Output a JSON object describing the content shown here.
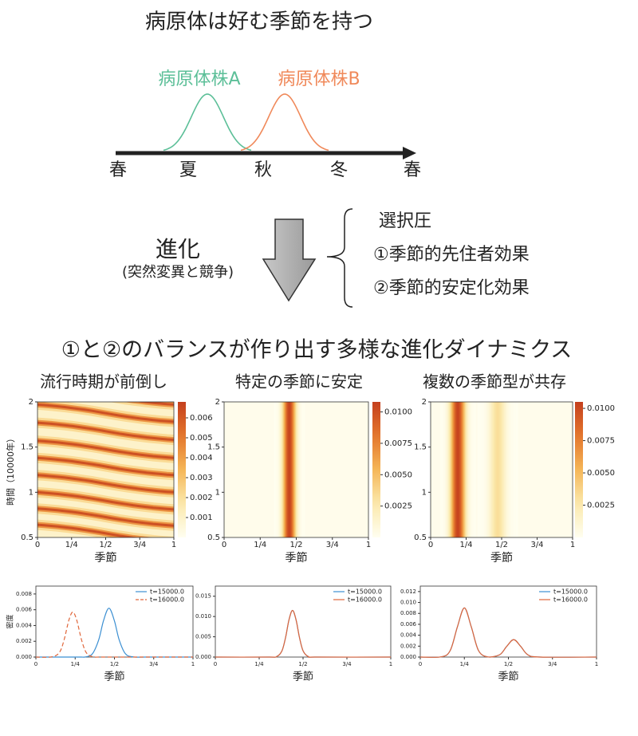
{
  "diagram": {
    "title": "病原体は好む季節を持つ",
    "strains": [
      {
        "name": "病原体株A",
        "color": "#5cbf98"
      },
      {
        "name": "病原体株B",
        "color": "#f0895a"
      }
    ],
    "seasons": [
      "春",
      "夏",
      "秋",
      "冬",
      "春"
    ],
    "process": {
      "label": "進化",
      "note": "(突然変異と競争)"
    },
    "pressure": {
      "label": "選択圧",
      "items": [
        "①季節的先住者効果",
        "②季節的安定化効果"
      ]
    },
    "subtitle": "①と②のバランスが作り出す多様な進化ダイナミクス"
  },
  "chart_data": [
    {
      "type": "heatmap",
      "title": "流行時期が前倒し",
      "xlabel": "季節",
      "ylabel": "時間（10000年）",
      "xlim": [
        0,
        1
      ],
      "xticks": [
        0,
        {
          "value": 0.25,
          "label": "1/4"
        },
        {
          "value": 0.5,
          "label": "1/2"
        },
        {
          "value": 0.75,
          "label": "3/4"
        },
        1
      ],
      "ylim": [
        0.5,
        2
      ],
      "yticks": [
        0.5,
        1,
        1.5,
        2
      ],
      "clim": [
        0,
        0.0068
      ],
      "cticks": [
        0.001,
        0.002,
        0.003,
        0.004,
        0.005,
        0.006
      ],
      "stripes": [
        {
          "t_left": 2.16,
          "t_right": 1.97,
          "value": 0.0065
        },
        {
          "t_left": 1.97,
          "t_right": 1.78,
          "value": 0.0065
        },
        {
          "t_left": 1.77,
          "t_right": 1.58,
          "value": 0.0065
        },
        {
          "t_left": 1.57,
          "t_right": 1.38,
          "value": 0.0065
        },
        {
          "t_left": 1.38,
          "t_right": 1.19,
          "value": 0.0065
        },
        {
          "t_left": 1.19,
          "t_right": 1.0,
          "value": 0.0065
        },
        {
          "t_left": 1.0,
          "t_right": 0.81,
          "value": 0.0065
        },
        {
          "t_left": 0.82,
          "t_right": 0.63,
          "value": 0.0065
        },
        {
          "t_left": 0.64,
          "t_right": 0.45,
          "value": 0.0065
        }
      ]
    },
    {
      "type": "heatmap",
      "title": "特定の季節に安定",
      "xlabel": "季節",
      "xlim": [
        0,
        1
      ],
      "xticks": [
        0,
        {
          "value": 0.25,
          "label": "1/4"
        },
        {
          "value": 0.5,
          "label": "1/2"
        },
        {
          "value": 0.75,
          "label": "3/4"
        },
        1
      ],
      "ylim": [
        0.5,
        2
      ],
      "yticks": [
        0.5,
        1,
        1.5,
        2
      ],
      "clim": [
        0,
        0.0108
      ],
      "cticks": [
        0.0025,
        {
          "value": 0.005,
          "label": "0.0050"
        },
        0.0075,
        {
          "value": 0.01,
          "label": "0.0100"
        }
      ],
      "bands": [
        {
          "x": 0.45,
          "width": 0.03,
          "value": 0.0106
        }
      ]
    },
    {
      "type": "heatmap",
      "title": "複数の季節型が共存",
      "xlabel": "季節",
      "xlim": [
        0,
        1
      ],
      "xticks": [
        0,
        {
          "value": 0.25,
          "label": "1/4"
        },
        {
          "value": 0.5,
          "label": "1/2"
        },
        {
          "value": 0.75,
          "label": "3/4"
        },
        1
      ],
      "ylim": [
        0.5,
        2
      ],
      "yticks": [
        0.5,
        1,
        1.5,
        2
      ],
      "clim": [
        0,
        0.0105
      ],
      "cticks": [
        0.0025,
        {
          "value": 0.005,
          "label": "0.0050"
        },
        0.0075,
        {
          "value": 0.01,
          "label": "0.0100"
        }
      ],
      "bands": [
        {
          "x": 0.19,
          "width": 0.035,
          "value": 0.0103
        },
        {
          "x": 0.47,
          "width": 0.04,
          "value": 0.0032
        }
      ]
    },
    {
      "type": "line",
      "xlabel": "季節",
      "ylabel": "密度",
      "legend": "upper right",
      "xlim": [
        0,
        1
      ],
      "xticks": [
        0,
        {
          "value": 0.25,
          "label": "1/4"
        },
        {
          "value": 0.5,
          "label": "1/2"
        },
        {
          "value": 0.75,
          "label": "3/4"
        },
        1
      ],
      "ylim": [
        0,
        0.009
      ],
      "yticks": [
        {
          "value": 0,
          "label": "0.000"
        },
        {
          "value": 0.002,
          "label": "0.002"
        },
        {
          "value": 0.004,
          "label": "0.004"
        },
        {
          "value": 0.006,
          "label": "0.006"
        },
        {
          "value": 0.008,
          "label": "0.008"
        }
      ],
      "x": [
        0,
        0.1,
        0.15,
        0.18,
        0.21,
        0.235,
        0.26,
        0.29,
        0.32,
        0.36,
        0.4,
        0.43,
        0.465,
        0.5,
        0.53,
        0.57,
        0.62,
        0.7,
        1
      ],
      "series": [
        {
          "name": "t=15000.0",
          "color": "#3b8fd2",
          "values": [
            0,
            0,
            0,
            0,
            0,
            0,
            0,
            0,
            3e-05,
            0.00041,
            0.00219,
            0.00458,
            0.0062,
            0.00458,
            0.00219,
            0.00041,
            2e-05,
            0,
            0
          ]
        },
        {
          "name": "t=16000.0",
          "color": "#e0663a",
          "dashed": true,
          "values": [
            0,
            2e-05,
            0.00059,
            0.00222,
            0.00469,
            0.0057,
            0.00469,
            0.00222,
            0.00059,
            4e-05,
            0,
            0,
            0,
            0,
            0,
            0,
            0,
            0,
            0
          ]
        }
      ]
    },
    {
      "type": "line",
      "xlabel": "季節",
      "legend": "upper right",
      "xlim": [
        0,
        1
      ],
      "xticks": [
        0,
        {
          "value": 0.25,
          "label": "1/4"
        },
        {
          "value": 0.5,
          "label": "1/2"
        },
        {
          "value": 0.75,
          "label": "3/4"
        },
        1
      ],
      "ylim": [
        0,
        0.0175
      ],
      "yticks": [
        {
          "value": 0,
          "label": "0.000"
        },
        {
          "value": 0.005,
          "label": "0.005"
        },
        {
          "value": 0.01,
          "label": "0.010"
        },
        {
          "value": 0.015,
          "label": "0.015"
        }
      ],
      "x": [
        0,
        0.3,
        0.35,
        0.38,
        0.4,
        0.42,
        0.44,
        0.46,
        0.48,
        0.5,
        0.53,
        0.58,
        1
      ],
      "series": [
        {
          "name": "t=15000.0",
          "color": "#3b8fd2",
          "values": [
            0,
            0,
            0.00013,
            0.00156,
            0.00473,
            0.00921,
            0.0115,
            0.00921,
            0.00473,
            0.00156,
            0.00013,
            0,
            0
          ]
        },
        {
          "name": "t=16000.0",
          "color": "#e0663a",
          "values": [
            0,
            0,
            0.00013,
            0.00156,
            0.00473,
            0.00921,
            0.0115,
            0.00921,
            0.00473,
            0.00156,
            0.00013,
            0,
            0
          ]
        }
      ]
    },
    {
      "type": "line",
      "xlabel": "季節",
      "legend": "upper right",
      "xlim": [
        0,
        1
      ],
      "xticks": [
        0,
        {
          "value": 0.25,
          "label": "1/4"
        },
        {
          "value": 0.5,
          "label": "1/2"
        },
        {
          "value": 0.75,
          "label": "3/4"
        },
        1
      ],
      "ylim": [
        0,
        0.013
      ],
      "yticks": [
        {
          "value": 0,
          "label": "0.000"
        },
        {
          "value": 0.002,
          "label": "0.002"
        },
        {
          "value": 0.004,
          "label": "0.004"
        },
        {
          "value": 0.006,
          "label": "0.006"
        },
        {
          "value": 0.008,
          "label": "0.008"
        },
        {
          "value": 0.01,
          "label": "0.010"
        },
        {
          "value": 0.012,
          "label": "0.012"
        }
      ],
      "x": [
        0,
        0.12,
        0.17,
        0.21,
        0.25,
        0.29,
        0.33,
        0.38,
        0.45,
        0.49,
        0.53,
        0.57,
        0.61,
        0.68,
        1
      ],
      "series": [
        {
          "name": "t=15000.0",
          "color": "#3b8fd2",
          "values": [
            0,
            5e-05,
            0.00122,
            0.00546,
            0.009,
            0.00546,
            0.00122,
            5e-05,
            0.00043,
            0.00194,
            0.0032,
            0.00194,
            0.00043,
            0,
            0
          ]
        },
        {
          "name": "t=16000.0",
          "color": "#e0663a",
          "values": [
            0,
            5e-05,
            0.00122,
            0.00546,
            0.009,
            0.00546,
            0.00122,
            5e-05,
            0.00043,
            0.00194,
            0.0032,
            0.00194,
            0.00043,
            0,
            0
          ]
        }
      ]
    }
  ]
}
